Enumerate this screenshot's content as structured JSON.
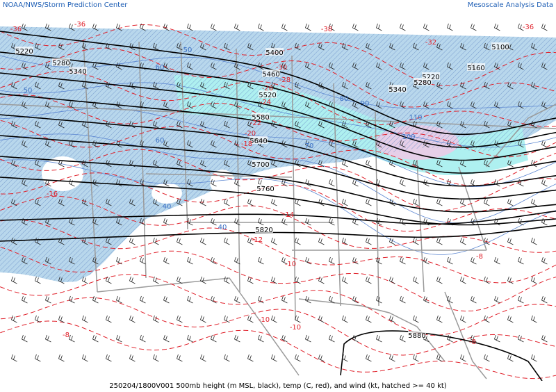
{
  "header": {
    "left": "NOAA/NWS/Storm Prediction Center",
    "right": "Mesoscale Analysis Data"
  },
  "caption": "250204/1800V001 500mb height (m MSL, black), temp (C, red), and wind (kt, hatched >= 40 kt)",
  "height_labels": [
    "5220",
    "5280",
    "5340",
    "5400",
    "5460",
    "5520",
    "5580",
    "5640",
    "5700",
    "5760",
    "5820",
    "5880",
    "5160",
    "5100",
    "5220",
    "5280",
    "5340"
  ],
  "temp_labels": [
    "-36",
    "-36",
    "-38",
    "-36",
    "-32",
    "-30",
    "-28",
    "-26",
    "-24",
    "-22",
    "-20",
    "-18",
    "-16",
    "-14",
    "-12",
    "-10",
    "-10",
    "-10",
    "-8",
    "-8",
    "-8"
  ],
  "wind_labels": [
    "40",
    "50",
    "60",
    "70",
    "80",
    "90",
    "100",
    "110",
    "40",
    "50",
    "60"
  ]
}
